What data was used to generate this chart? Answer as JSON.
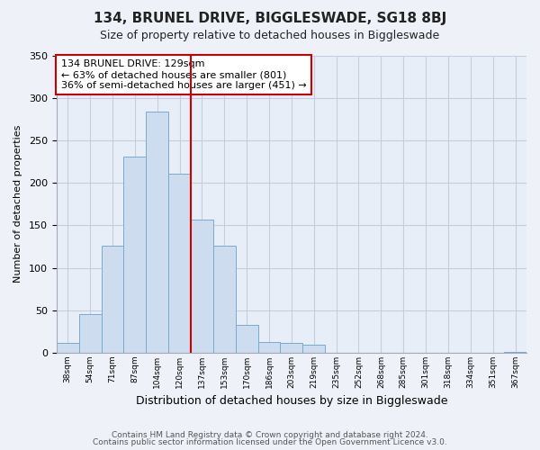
{
  "title": "134, BRUNEL DRIVE, BIGGLESWADE, SG18 8BJ",
  "subtitle": "Size of property relative to detached houses in Biggleswade",
  "xlabel": "Distribution of detached houses by size in Biggleswade",
  "ylabel": "Number of detached properties",
  "bin_labels": [
    "38sqm",
    "54sqm",
    "71sqm",
    "87sqm",
    "104sqm",
    "120sqm",
    "137sqm",
    "153sqm",
    "170sqm",
    "186sqm",
    "203sqm",
    "219sqm",
    "235sqm",
    "252sqm",
    "268sqm",
    "285sqm",
    "301sqm",
    "318sqm",
    "334sqm",
    "351sqm",
    "367sqm"
  ],
  "bar_values": [
    12,
    46,
    126,
    231,
    284,
    211,
    157,
    126,
    33,
    13,
    12,
    10,
    0,
    0,
    0,
    0,
    0,
    0,
    0,
    0,
    1
  ],
  "bar_color": "#cddcee",
  "bar_edge_color": "#7aaacf",
  "vline_x": 5.5,
  "vline_color": "#cc0000",
  "annotation_text": "134 BRUNEL DRIVE: 129sqm\n← 63% of detached houses are smaller (801)\n36% of semi-detached houses are larger (451) →",
  "annotation_box_edgecolor": "#cc0000",
  "ylim": [
    0,
    350
  ],
  "yticks": [
    0,
    50,
    100,
    150,
    200,
    250,
    300,
    350
  ],
  "footer1": "Contains HM Land Registry data © Crown copyright and database right 2024.",
  "footer2": "Contains public sector information licensed under the Open Government Licence v3.0.",
  "bg_color": "#eef2f8",
  "plot_bg_color": "#e8eef8",
  "grid_color": "#c5cedf"
}
